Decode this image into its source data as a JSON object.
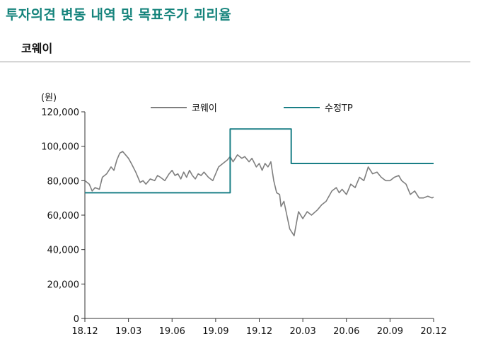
{
  "header": {
    "title": "투자의견 변동 내역 및 목표주가 괴리율",
    "subtitle": "코웨이"
  },
  "chart_data": {
    "type": "line",
    "unit_label": "(원)",
    "x_ticks": [
      "18.12",
      "19.03",
      "19.06",
      "19.09",
      "19.12",
      "20.03",
      "20.06",
      "20.09",
      "20.12"
    ],
    "y_ticks": [
      "0",
      "20,000",
      "40,000",
      "60,000",
      "80,000",
      "100,000",
      "120,000"
    ],
    "ylim": [
      0,
      120000
    ],
    "legend": {
      "placement": "top"
    },
    "series": [
      {
        "name": "코웨이",
        "color": "#7f7f7f",
        "x": [
          0,
          0.3,
          0.5,
          0.7,
          1.0,
          1.2,
          1.5,
          1.8,
          2.0,
          2.2,
          2.4,
          2.6,
          2.8,
          3.0,
          3.2,
          3.5,
          3.8,
          4.0,
          4.2,
          4.5,
          4.8,
          5.0,
          5.2,
          5.5,
          5.8,
          6.0,
          6.2,
          6.4,
          6.6,
          6.8,
          7.0,
          7.2,
          7.4,
          7.6,
          7.8,
          8.0,
          8.2,
          8.5,
          8.8,
          9.0,
          9.2,
          9.5,
          9.8,
          10.0,
          10.2,
          10.5,
          10.8,
          11.0,
          11.3,
          11.5,
          11.8,
          12.0,
          12.2,
          12.4,
          12.6,
          12.8,
          13.0,
          13.2,
          13.4,
          13.5,
          13.7,
          13.9,
          14.1,
          14.4,
          14.7,
          15.0,
          15.3,
          15.6,
          16.0,
          16.3,
          16.6,
          17.0,
          17.3,
          17.5,
          17.7,
          18.0,
          18.3,
          18.6,
          18.9,
          19.2,
          19.5,
          19.8,
          20.1,
          20.4,
          20.7,
          21.0,
          21.3,
          21.6,
          21.8,
          22.1,
          22.4,
          22.7,
          23.0,
          23.3,
          23.6,
          23.9,
          24.0
        ],
        "values": [
          80000,
          78000,
          74000,
          76000,
          75000,
          82000,
          84000,
          88000,
          86000,
          92000,
          96000,
          97000,
          95000,
          93000,
          90000,
          85000,
          79000,
          80000,
          78000,
          81000,
          80000,
          83000,
          82000,
          80000,
          84000,
          86000,
          83000,
          84000,
          81000,
          85000,
          82000,
          86000,
          83000,
          81000,
          84000,
          83000,
          85000,
          82000,
          80000,
          84000,
          88000,
          90000,
          92000,
          94000,
          91000,
          95000,
          93000,
          94000,
          91000,
          93000,
          88000,
          90000,
          86000,
          90000,
          88000,
          91000,
          80000,
          73000,
          72000,
          65000,
          68000,
          60000,
          52000,
          48000,
          62000,
          58000,
          62000,
          60000,
          63000,
          66000,
          68000,
          74000,
          76000,
          73000,
          75000,
          72000,
          78000,
          76000,
          82000,
          80000,
          88000,
          84000,
          85000,
          82000,
          80000,
          80000,
          82000,
          83000,
          80000,
          78000,
          72000,
          74000,
          70000,
          70000,
          71000,
          70000,
          70500
        ]
      },
      {
        "name": "수정TP",
        "color": "#1a7f86",
        "x": [
          0,
          10.0,
          10.0,
          14.2,
          14.2,
          24.0
        ],
        "values": [
          73000,
          73000,
          110000,
          110000,
          90000,
          90000
        ]
      }
    ]
  }
}
